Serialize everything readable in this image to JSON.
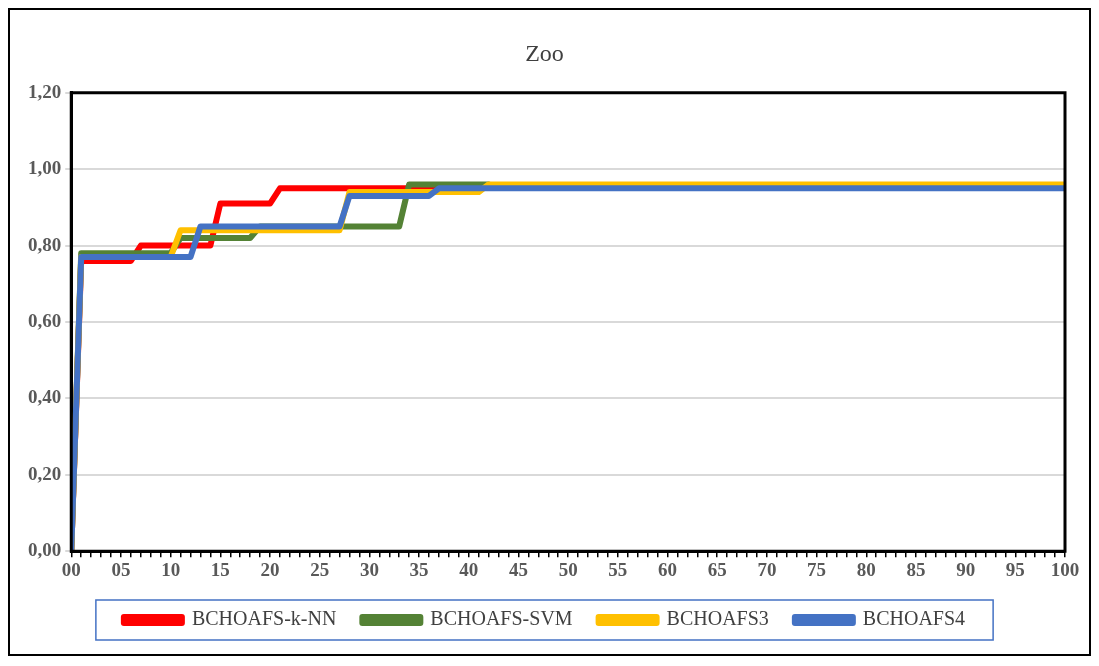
{
  "chart_data": {
    "type": "line",
    "title": "Zoo",
    "xlim": [
      0,
      100
    ],
    "xticks": [
      {
        "value": 0,
        "label": "00"
      },
      {
        "value": 1,
        "label": null
      },
      {
        "value": 2,
        "label": null
      },
      {
        "value": 3,
        "label": null
      },
      {
        "value": 4,
        "label": null
      },
      {
        "value": 5,
        "label": "05"
      },
      {
        "value": 6,
        "label": null
      },
      {
        "value": 7,
        "label": null
      },
      {
        "value": 8,
        "label": null
      },
      {
        "value": 9,
        "label": null
      },
      10,
      {
        "value": 11,
        "label": null
      },
      {
        "value": 12,
        "label": null
      },
      {
        "value": 13,
        "label": null
      },
      {
        "value": 14,
        "label": null
      },
      15,
      {
        "value": 16,
        "label": null
      },
      {
        "value": 17,
        "label": null
      },
      {
        "value": 18,
        "label": null
      },
      {
        "value": 19,
        "label": null
      },
      20,
      {
        "value": 21,
        "label": null
      },
      {
        "value": 22,
        "label": null
      },
      {
        "value": 23,
        "label": null
      },
      {
        "value": 24,
        "label": null
      },
      25,
      {
        "value": 26,
        "label": null
      },
      {
        "value": 27,
        "label": null
      },
      {
        "value": 28,
        "label": null
      },
      {
        "value": 29,
        "label": null
      },
      30,
      {
        "value": 31,
        "label": null
      },
      {
        "value": 32,
        "label": null
      },
      {
        "value": 33,
        "label": null
      },
      {
        "value": 34,
        "label": null
      },
      35,
      {
        "value": 36,
        "label": null
      },
      {
        "value": 37,
        "label": null
      },
      {
        "value": 38,
        "label": null
      },
      {
        "value": 39,
        "label": null
      },
      40,
      {
        "value": 41,
        "label": null
      },
      {
        "value": 42,
        "label": null
      },
      {
        "value": 43,
        "label": null
      },
      {
        "value": 44,
        "label": null
      },
      45,
      {
        "value": 46,
        "label": null
      },
      {
        "value": 47,
        "label": null
      },
      {
        "value": 48,
        "label": null
      },
      {
        "value": 49,
        "label": null
      },
      50,
      {
        "value": 51,
        "label": null
      },
      {
        "value": 52,
        "label": null
      },
      {
        "value": 53,
        "label": null
      },
      {
        "value": 54,
        "label": null
      },
      55,
      {
        "value": 56,
        "label": null
      },
      {
        "value": 57,
        "label": null
      },
      {
        "value": 58,
        "label": null
      },
      {
        "value": 59,
        "label": null
      },
      60,
      {
        "value": 61,
        "label": null
      },
      {
        "value": 62,
        "label": null
      },
      {
        "value": 63,
        "label": null
      },
      {
        "value": 64,
        "label": null
      },
      65,
      {
        "value": 66,
        "label": null
      },
      {
        "value": 67,
        "label": null
      },
      {
        "value": 68,
        "label": null
      },
      {
        "value": 69,
        "label": null
      },
      70,
      {
        "value": 71,
        "label": null
      },
      {
        "value": 72,
        "label": null
      },
      {
        "value": 73,
        "label": null
      },
      {
        "value": 74,
        "label": null
      },
      75,
      {
        "value": 76,
        "label": null
      },
      {
        "value": 77,
        "label": null
      },
      {
        "value": 78,
        "label": null
      },
      {
        "value": 79,
        "label": null
      },
      80,
      {
        "value": 81,
        "label": null
      },
      {
        "value": 82,
        "label": null
      },
      {
        "value": 83,
        "label": null
      },
      {
        "value": 84,
        "label": null
      },
      85,
      {
        "value": 86,
        "label": null
      },
      {
        "value": 87,
        "label": null
      },
      {
        "value": 88,
        "label": null
      },
      {
        "value": 89,
        "label": null
      },
      90,
      {
        "value": 91,
        "label": null
      },
      {
        "value": 92,
        "label": null
      },
      {
        "value": 93,
        "label": null
      },
      {
        "value": 94,
        "label": null
      },
      95,
      {
        "value": 96,
        "label": null
      },
      {
        "value": 97,
        "label": null
      },
      {
        "value": 98,
        "label": null
      },
      {
        "value": 99,
        "label": null
      },
      100
    ],
    "ylim": [
      0,
      1.2
    ],
    "yticks": [
      {
        "value": 0,
        "label": "0,00"
      },
      {
        "value": 0.2,
        "label": "0,20"
      },
      {
        "value": 0.4,
        "label": "0,40"
      },
      {
        "value": 0.6,
        "label": "0,60"
      },
      {
        "value": 0.8,
        "label": "0,80"
      },
      {
        "value": 1,
        "label": "1,00"
      },
      {
        "value": 1.2,
        "label": "1,20"
      }
    ],
    "grid": "y",
    "legend": "bottom",
    "line_style": "solid",
    "series": [
      {
        "name": "BCHOAFS-k-NN",
        "color": "#ff0000",
        "x": [
          0,
          1,
          6,
          7,
          14,
          15,
          20,
          21,
          37
        ],
        "values": [
          0,
          0.76,
          0.76,
          0.8,
          0.8,
          0.91,
          0.91,
          0.95,
          0.95
        ]
      },
      {
        "name": "BCHOAFS-SVM",
        "color": "#548235",
        "x": [
          0,
          1,
          10,
          11,
          18,
          19,
          33,
          34,
          42
        ],
        "values": [
          0,
          0.78,
          0.78,
          0.82,
          0.82,
          0.85,
          0.85,
          0.96,
          0.96
        ]
      },
      {
        "name": "BCHOAFS3",
        "color": "#ffc000",
        "x": [
          0,
          1,
          10,
          11,
          27,
          28,
          41,
          42,
          100
        ],
        "values": [
          0,
          0.77,
          0.77,
          0.84,
          0.84,
          0.94,
          0.94,
          0.96,
          0.96
        ]
      },
      {
        "name": "BCHOAFS4",
        "color": "#4472c4",
        "x": [
          0,
          1,
          12,
          13,
          27,
          28,
          36,
          37,
          100
        ],
        "values": [
          0,
          0.77,
          0.77,
          0.85,
          0.85,
          0.93,
          0.93,
          0.95,
          0.95
        ]
      }
    ]
  }
}
